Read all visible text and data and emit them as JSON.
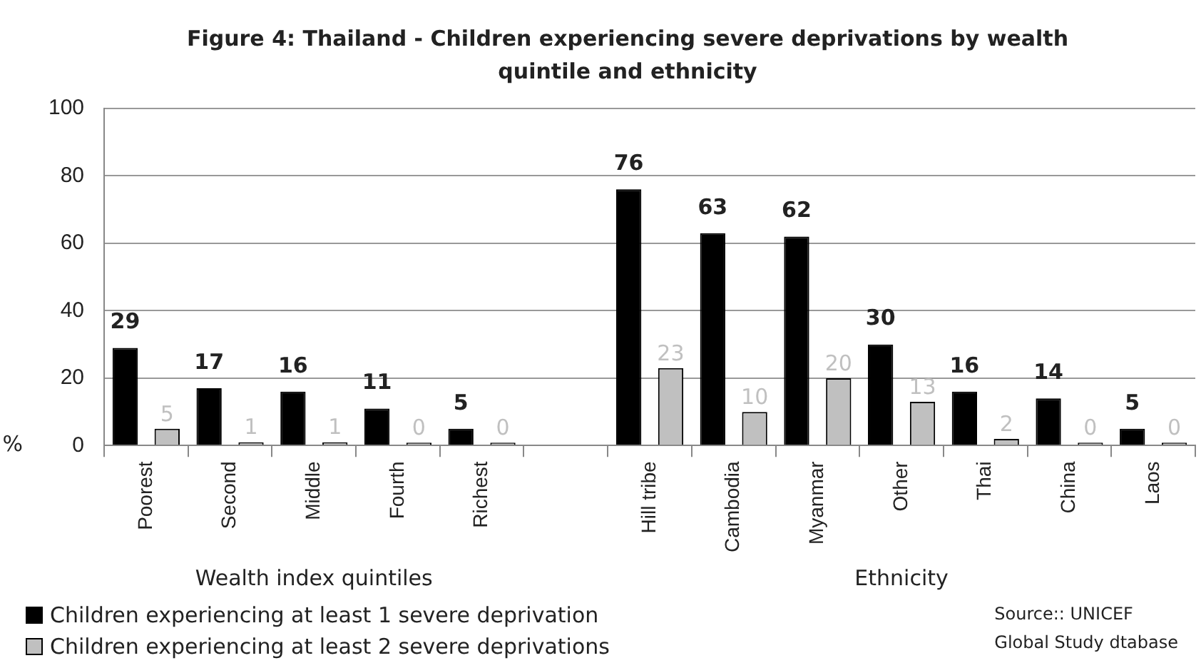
{
  "chart_data": {
    "type": "bar",
    "title": "Figure 4: Thailand  - Children experiencing severe deprivations by wealth quintile and ethnicity",
    "ylabel": "%",
    "categories": [
      "Poorest",
      "Second",
      "Middle",
      "Fourth",
      "Richest",
      null,
      "Hill tribe",
      "Cambodia",
      "Myanmar",
      "Other",
      "Thai",
      "China",
      "Laos"
    ],
    "series": [
      {
        "name": "Children experiencing at least 1 severe deprivation",
        "color": "#000000",
        "values": [
          29,
          17,
          16,
          11,
          5,
          null,
          76,
          63,
          62,
          30,
          16,
          14,
          5
        ]
      },
      {
        "name": "Children experiencing at least 2 severe deprivations",
        "color": "#c0c0c0",
        "values": [
          5,
          1,
          1,
          0,
          0,
          null,
          23,
          10,
          20,
          13,
          2,
          0,
          0
        ]
      }
    ],
    "ylim": [
      0,
      100
    ],
    "yticks": [
      0,
      20,
      40,
      60,
      80,
      100
    ],
    "grid": "y",
    "legend": "bottom left",
    "data_labels": true,
    "annotations": [
      "Wealth index quintiles",
      "Ethnicity",
      "Source:: UNICEF\nGlobal Study dtabase"
    ]
  }
}
